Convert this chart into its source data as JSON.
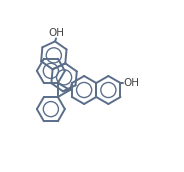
{
  "bg": "#ffffff",
  "lc": "#5a6e8a",
  "lw": 1.4,
  "oh_color": "#444444",
  "oh_fs": 7.5,
  "fig_w": 1.84,
  "fig_h": 1.72,
  "dpi": 100,
  "ring_r": 13.5,
  "Q": [
    72,
    88
  ]
}
